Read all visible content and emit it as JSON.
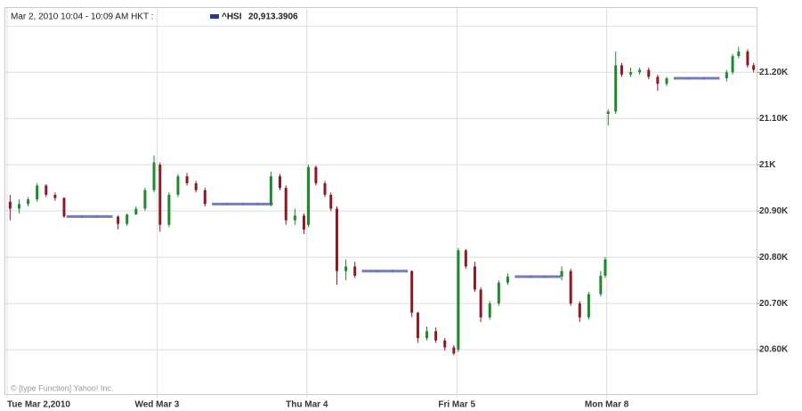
{
  "chart_data": {
    "type": "candlestick",
    "header": "Mar 2, 2010 10:04 - 10:09 AM HKT :",
    "series_name": "^HSI",
    "last_value": {
      "value": 20913.3906,
      "label": "20,913.3906"
    },
    "legend_color": "#2b3a8c",
    "watermark": "© [type Function] Yahoo! Inc.",
    "up_color": "#1e8a2a",
    "down_color": "#8b1a24",
    "flat_color": "#5a66b4",
    "grid": true,
    "xlim": [
      0,
      5
    ],
    "xticks": [
      {
        "value": 0,
        "label": "Tue Mar 2,2010"
      },
      {
        "value": 1,
        "label": "Wed Mar 3"
      },
      {
        "value": 2,
        "label": "Thu Mar 4"
      },
      {
        "value": 3,
        "label": "Fri Mar 5"
      },
      {
        "value": 4,
        "label": "Mon Mar 8"
      }
    ],
    "ylim": [
      20504,
      21337
    ],
    "yticks": [
      {
        "value": 20600,
        "label": "20.60K"
      },
      {
        "value": 20700,
        "label": "20.70K"
      },
      {
        "value": 20800,
        "label": "20.80K"
      },
      {
        "value": 20900,
        "label": "20.90K"
      },
      {
        "value": 21000,
        "label": "21K"
      },
      {
        "value": 21100,
        "label": "21.10K"
      },
      {
        "value": 21200,
        "label": "21.20K"
      }
    ],
    "x": [
      0.02,
      0.08,
      0.14,
      0.2,
      0.26,
      0.32,
      0.38,
      0.45,
      0.55,
      0.65,
      0.74,
      0.8,
      0.86,
      0.92,
      0.98,
      1.02,
      1.08,
      1.14,
      1.2,
      1.26,
      1.32,
      1.42,
      1.52,
      1.62,
      1.72,
      1.76,
      1.82,
      1.86,
      1.92,
      1.98,
      2.01,
      2.06,
      2.12,
      2.16,
      2.2,
      2.26,
      2.32,
      2.42,
      2.52,
      2.62,
      2.7,
      2.74,
      2.8,
      2.86,
      2.92,
      2.98,
      3.01,
      3.06,
      3.12,
      3.16,
      3.22,
      3.28,
      3.34,
      3.44,
      3.54,
      3.64,
      3.7,
      3.76,
      3.82,
      3.88,
      3.96,
      3.99,
      4.01,
      4.06,
      4.1,
      4.16,
      4.22,
      4.28,
      4.34,
      4.4,
      4.5,
      4.6,
      4.7,
      4.8,
      4.84,
      4.88,
      4.94,
      4.98
    ],
    "open": [
      20920,
      20905,
      20915,
      20925,
      20955,
      20935,
      20928,
      20888,
      20888,
      20888,
      20888,
      20872,
      20892,
      20905,
      20945,
      21000,
      20870,
      20935,
      20975,
      20960,
      20945,
      20915,
      20915,
      20915,
      20915,
      20915,
      20975,
      20950,
      20880,
      20890,
      20870,
      20995,
      20960,
      20935,
      20905,
      20770,
      20780,
      20770,
      20770,
      20770,
      20770,
      20680,
      20625,
      20640,
      20620,
      20605,
      20600,
      20815,
      20780,
      20730,
      20670,
      20700,
      20745,
      20758,
      20758,
      20758,
      20758,
      20770,
      20700,
      20670,
      20720,
      20760,
      21110,
      21115,
      21215,
      21195,
      21200,
      21205,
      21190,
      21175,
      21187,
      21187,
      21187,
      21187,
      21200,
      21235,
      21245,
      21215
    ],
    "high": [
      20935,
      20925,
      20930,
      20960,
      20958,
      20940,
      20930,
      20888,
      20888,
      20888,
      20890,
      20895,
      20910,
      20950,
      21020,
      21005,
      20940,
      20980,
      20982,
      20965,
      20950,
      20915,
      20915,
      20915,
      20915,
      20985,
      20980,
      20955,
      20905,
      20895,
      21000,
      20998,
      20965,
      20940,
      20910,
      20795,
      20790,
      20770,
      20770,
      20770,
      20772,
      20682,
      20650,
      20648,
      20625,
      20610,
      20820,
      20818,
      20790,
      20735,
      20705,
      20750,
      20765,
      20758,
      20758,
      20758,
      20780,
      20775,
      20705,
      20725,
      20770,
      20800,
      21120,
      21245,
      21220,
      21210,
      21210,
      21210,
      21195,
      21190,
      21187,
      21187,
      21187,
      21205,
      21240,
      21255,
      21250,
      21220
    ],
    "low": [
      20880,
      20895,
      20910,
      20920,
      20930,
      20922,
      20885,
      20888,
      20888,
      20888,
      20860,
      20868,
      20895,
      20900,
      20940,
      20855,
      20865,
      20930,
      20955,
      20940,
      20910,
      20915,
      20915,
      20915,
      20915,
      20910,
      20945,
      20870,
      20870,
      20850,
      20865,
      20955,
      20930,
      20900,
      20740,
      20750,
      20755,
      20770,
      20770,
      20770,
      20670,
      20615,
      20620,
      20615,
      20598,
      20588,
      20595,
      20775,
      20725,
      20660,
      20665,
      20695,
      20740,
      20758,
      20758,
      20758,
      20750,
      20695,
      20660,
      20665,
      20715,
      20755,
      21085,
      21110,
      21190,
      21190,
      21195,
      21185,
      21160,
      21170,
      21187,
      21187,
      21187,
      21180,
      21195,
      21230,
      21210,
      21200
    ],
    "close": [
      20905,
      20915,
      20925,
      20955,
      20935,
      20928,
      20888,
      20888,
      20888,
      20888,
      20872,
      20892,
      20905,
      20945,
      21005,
      20870,
      20935,
      20975,
      20960,
      20945,
      20915,
      20915,
      20915,
      20915,
      20915,
      20975,
      20950,
      20880,
      20890,
      20860,
      20995,
      20960,
      20935,
      20905,
      20770,
      20780,
      20760,
      20770,
      20770,
      20770,
      20680,
      20625,
      20640,
      20620,
      20605,
      20592,
      20815,
      20780,
      20730,
      20670,
      20700,
      20745,
      20758,
      20758,
      20758,
      20758,
      20770,
      20700,
      20670,
      20720,
      20760,
      20795,
      21115,
      21215,
      21195,
      21200,
      21205,
      21190,
      21175,
      21187,
      21187,
      21187,
      21187,
      21200,
      21235,
      21245,
      21215,
      21205
    ]
  }
}
